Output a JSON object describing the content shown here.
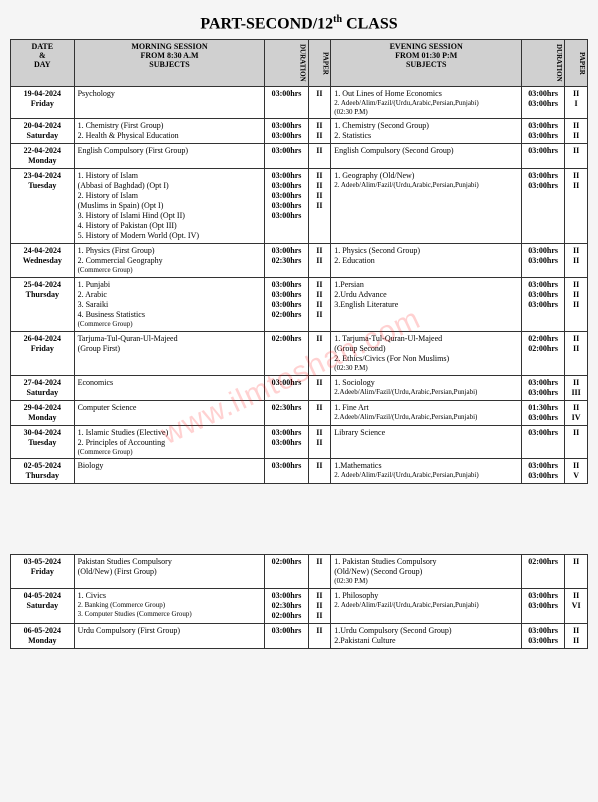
{
  "title_html": "PART-SECOND/12<sup>th</sup> CLASS",
  "watermark": "www.ilmtoshan.com",
  "headers": {
    "date": "DATE\n&\nDAY",
    "morning": "MORNING SESSION\nFROM 8:30 A.M\nSUBJECTS",
    "evening": "EVENING SESSION\nFROM 01:30 P:M\nSUBJECTS",
    "duration": "DURATION",
    "paper": "PAPER"
  },
  "rows": [
    {
      "date": "19-04-2024",
      "day": "Friday",
      "m_sub": [
        "Psychology"
      ],
      "m_dur": [
        "03:00hrs"
      ],
      "m_pap": [
        "II"
      ],
      "e_sub": [
        "1. Out Lines of Home Economics",
        "2. Adeeb/Alim/Fazil/(Urdu,Arabic,Persian,Punjabi)",
        "(02:30 P.M)"
      ],
      "e_dur": [
        "03:00hrs",
        "03:00hrs"
      ],
      "e_pap": [
        "II",
        "I"
      ]
    },
    {
      "date": "20-04-2024",
      "day": "Saturday",
      "m_sub": [
        "1. Chemistry        (First Group)",
        "2. Health & Physical Education"
      ],
      "m_dur": [
        "03:00hrs",
        "03:00hrs"
      ],
      "m_pap": [
        "II",
        "II"
      ],
      "e_sub": [
        "1. Chemistry            (Second Group)",
        "2. Statistics"
      ],
      "e_dur": [
        "03:00hrs",
        "03:00hrs"
      ],
      "e_pap": [
        "II",
        "II"
      ]
    },
    {
      "date": "22-04-2024",
      "day": "Monday",
      "m_sub": [
        "English Compulsory (First Group)"
      ],
      "m_dur": [
        "03:00hrs"
      ],
      "m_pap": [
        "II"
      ],
      "e_sub": [
        "English Compulsory     (Second Group)"
      ],
      "e_dur": [
        "03:00hrs"
      ],
      "e_pap": [
        "II"
      ]
    },
    {
      "date": "23-04-2024",
      "day": "Tuesday",
      "m_sub": [
        "1. History of Islam",
        "   (Abbasi of Baghdad)    (Opt I)",
        "2. History of Islam",
        "   (Muslims in Spain)        (Opt I)",
        "3. History of Islami Hind   (Opt II)",
        "4. History of Pakistan      (Opt III)",
        "5. History of Modern World (Opt. IV)"
      ],
      "m_dur": [
        "03:00hrs",
        "",
        "03:00hrs",
        "",
        "03:00hrs",
        "03:00hrs",
        "03:00hrs"
      ],
      "m_pap": [
        "II",
        "",
        "",
        "",
        "II",
        "II",
        "II"
      ],
      "e_sub": [
        "1. Geography (Old/New)",
        "2. Adeeb/Alim/Fazil/(Urdu,Arabic,Persian,Punjabi)"
      ],
      "e_dur": [
        "03:00hrs",
        "03:00hrs"
      ],
      "e_pap": [
        "II",
        "II"
      ]
    },
    {
      "date": "24-04-2024",
      "day": "Wednesday",
      "m_sub": [
        "1. Physics             (First Group)",
        "2. Commercial Geography",
        "   (Commerce Group)"
      ],
      "m_dur": [
        "03:00hrs",
        "02:30hrs"
      ],
      "m_pap": [
        "II",
        "II"
      ],
      "e_sub": [
        "1. Physics               (Second Group)",
        "2. Education"
      ],
      "e_dur": [
        "03:00hrs",
        "03:00hrs"
      ],
      "e_pap": [
        "II",
        "II"
      ]
    },
    {
      "date": "25-04-2024",
      "day": "Thursday",
      "m_sub": [
        "1. Punjabi",
        "2. Arabic",
        "3. Saraiki",
        "4. Business Statistics",
        "   (Commerce Group)"
      ],
      "m_dur": [
        "03:00hrs",
        "03:00hrs",
        "03:00hrs",
        "02:00hrs"
      ],
      "m_pap": [
        "II",
        "II",
        "II",
        "II"
      ],
      "e_sub": [
        "1.Persian",
        "2.Urdu Advance",
        "3.English Literature"
      ],
      "e_dur": [
        "03:00hrs",
        "03:00hrs",
        "03:00hrs"
      ],
      "e_pap": [
        "II",
        "II",
        "II"
      ]
    },
    {
      "date": "26-04-2024",
      "day": "Friday",
      "m_sub": [
        "Tarjuma-Tul-Quran-Ul-Majeed",
        "                       (Group First)"
      ],
      "m_dur": [
        "02:00hrs"
      ],
      "m_pap": [
        "II"
      ],
      "e_sub": [
        "1. Tarjuma-Tul-Quran-Ul-Majeed",
        "                       (Group Second)",
        "2. Ethics/Civics (For Non Muslims)",
        "(02:30 P.M)"
      ],
      "e_dur": [
        "02:00hrs",
        "",
        "02:00hrs"
      ],
      "e_pap": [
        "II",
        "",
        "II"
      ]
    },
    {
      "date": "27-04-2024",
      "day": "Saturday",
      "m_sub": [
        "Economics"
      ],
      "m_dur": [
        "03:00hrs"
      ],
      "m_pap": [
        "II"
      ],
      "e_sub": [
        "1. Sociology",
        "2.Adeeb/Alim/Fazil/(Urdu,Arabic,Persian,Punjabi)"
      ],
      "e_dur": [
        "03:00hrs",
        "03:00hrs"
      ],
      "e_pap": [
        "II",
        "III"
      ]
    },
    {
      "date": "29-04-2024",
      "day": "Monday",
      "m_sub": [
        "Computer Science"
      ],
      "m_dur": [
        "02:30hrs"
      ],
      "m_pap": [
        "II"
      ],
      "e_sub": [
        "1. Fine Art",
        "2.Adeeb/Alim/Fazil/(Urdu,Arabic,Persian,Punjabi)"
      ],
      "e_dur": [
        "01:30hrs",
        "03:00hrs"
      ],
      "e_pap": [
        "II",
        "IV"
      ]
    },
    {
      "date": "30-04-2024",
      "day": "Tuesday",
      "m_sub": [
        "1. Islamic Studies (Elective)",
        "2. Principles of Accounting",
        "   (Commerce Group)"
      ],
      "m_dur": [
        "03:00hrs",
        "03:00hrs"
      ],
      "m_pap": [
        "II",
        "II"
      ],
      "e_sub": [
        "Library Science"
      ],
      "e_dur": [
        "03:00hrs"
      ],
      "e_pap": [
        "II"
      ]
    },
    {
      "date": "02-05-2024",
      "day": "Thursday",
      "m_sub": [
        "Biology"
      ],
      "m_dur": [
        "03:00hrs"
      ],
      "m_pap": [
        "II"
      ],
      "e_sub": [
        "1.Mathematics",
        "2. Adeeb/Alim/Fazil/(Urdu,Arabic,Persian,Punjabi)"
      ],
      "e_dur": [
        "03:00hrs",
        "03:00hrs"
      ],
      "e_pap": [
        "II",
        "V"
      ]
    }
  ],
  "rows2": [
    {
      "date": "03-05-2024",
      "day": "Friday",
      "m_sub": [
        "Pakistan Studies Compulsory",
        "         (Old/New)  (First Group)"
      ],
      "m_dur": [
        "02:00hrs"
      ],
      "m_pap": [
        "II"
      ],
      "e_sub": [
        "1. Pakistan Studies Compulsory",
        "         (Old/New)  (Second Group)",
        "(02:30 P.M)"
      ],
      "e_dur": [
        "02:00hrs"
      ],
      "e_pap": [
        "II"
      ]
    },
    {
      "date": "04-05-2024",
      "day": "Saturday",
      "m_sub": [
        "1. Civics",
        "2. Banking  (Commerce Group)",
        "3. Computer Studies (Commerce Group)"
      ],
      "m_dur": [
        "03:00hrs",
        "02:30hrs",
        "02:00hrs"
      ],
      "m_pap": [
        "II",
        "II",
        "II"
      ],
      "e_sub": [
        "1. Philosophy",
        "2. Adeeb/Alim/Fazil/(Urdu,Arabic,Persian,Punjabi)"
      ],
      "e_dur": [
        "03:00hrs",
        "03:00hrs"
      ],
      "e_pap": [
        "II",
        "VI"
      ]
    },
    {
      "date": "06-05-2024",
      "day": "Monday",
      "m_sub": [
        "Urdu Compulsory    (First Group)"
      ],
      "m_dur": [
        "03:00hrs"
      ],
      "m_pap": [
        "II"
      ],
      "e_sub": [
        "1.Urdu Compulsory     (Second Group)",
        "2.Pakistani Culture"
      ],
      "e_dur": [
        "03:00hrs",
        "03:00hrs"
      ],
      "e_pap": [
        "II",
        "II"
      ]
    }
  ]
}
